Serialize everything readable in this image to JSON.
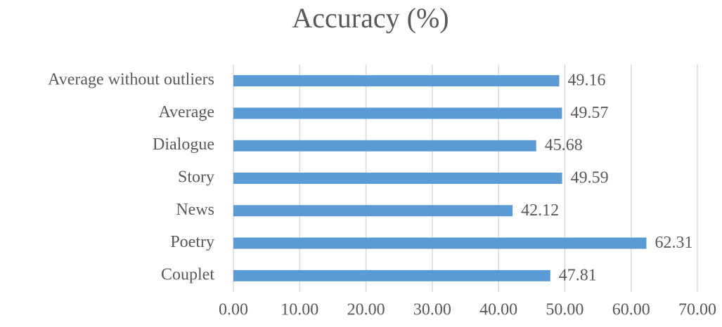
{
  "chart_data": {
    "type": "barh",
    "title": "Accuracy (%)",
    "categories": [
      "Average without outliers",
      "Average",
      "Dialogue",
      "Story",
      "News",
      "Poetry",
      "Couplet"
    ],
    "values": [
      49.16,
      49.57,
      45.68,
      49.59,
      42.12,
      62.31,
      47.81
    ],
    "color": "#5b9bd5",
    "xlim": [
      0,
      70
    ],
    "xticks": [
      {
        "value": 0,
        "label": "0.00"
      },
      {
        "value": 10,
        "label": "10.00"
      },
      {
        "value": 20,
        "label": "20.00"
      },
      {
        "value": 30,
        "label": "30.00"
      },
      {
        "value": 40,
        "label": "40.00"
      },
      {
        "value": 50,
        "label": "50.00"
      },
      {
        "value": 60,
        "label": "60.00"
      },
      {
        "value": 70,
        "label": "70.00"
      }
    ],
    "grid": true
  }
}
